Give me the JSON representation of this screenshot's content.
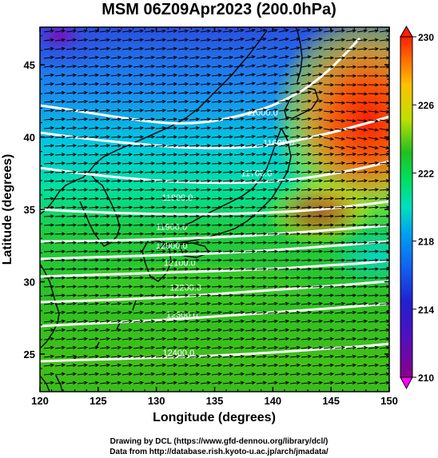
{
  "title": "MSM 06Z09Apr2023 (200.0hPa)",
  "x_axis": {
    "label": "Longitude (degrees)",
    "range": [
      120,
      150
    ],
    "ticks": [
      "120",
      "125",
      "130",
      "135",
      "140",
      "145",
      "150"
    ]
  },
  "y_axis": {
    "label": "Latitude  (degrees)",
    "range": [
      22.4,
      47.6
    ],
    "ticks": [
      "25",
      "30",
      "35",
      "40",
      "45"
    ]
  },
  "colorbar": {
    "range": [
      210,
      230
    ],
    "ticks": [
      "210",
      "214",
      "218",
      "222",
      "226",
      "230"
    ],
    "colors": [
      "#8a008a",
      "#2020d0",
      "#00a0f0",
      "#00e0a0",
      "#20c020",
      "#c0e000",
      "#ff9000",
      "#ff2000"
    ]
  },
  "contours": {
    "color": "#ffffff",
    "labels": [
      {
        "text": "11000.0",
        "lon": 139.1,
        "lat": 41.5
      },
      {
        "text": "11600.0",
        "lon": 140.5,
        "lat": 39.4
      },
      {
        "text": "11700.0",
        "lon": 138.6,
        "lat": 37.3
      },
      {
        "text": "11800.0",
        "lon": 131.8,
        "lat": 35.6
      },
      {
        "text": "11900.0",
        "lon": 131.3,
        "lat": 33.6
      },
      {
        "text": "12000.0",
        "lon": 131.3,
        "lat": 32.3
      },
      {
        "text": "12100.0",
        "lon": 132.0,
        "lat": 31.1
      },
      {
        "text": "12200.0",
        "lon": 132.5,
        "lat": 29.4
      },
      {
        "text": "12300.0",
        "lon": 132.2,
        "lat": 27.5
      },
      {
        "text": "12400.0",
        "lon": 131.9,
        "lat": 24.9
      }
    ]
  },
  "credits": {
    "line1": "Drawing by DCL (https://www.gfd-dennou.org/library/dcl/)",
    "line2": "Data from http://database.rish.kyoto-u.ac.jp/arch/jmadata/"
  }
}
